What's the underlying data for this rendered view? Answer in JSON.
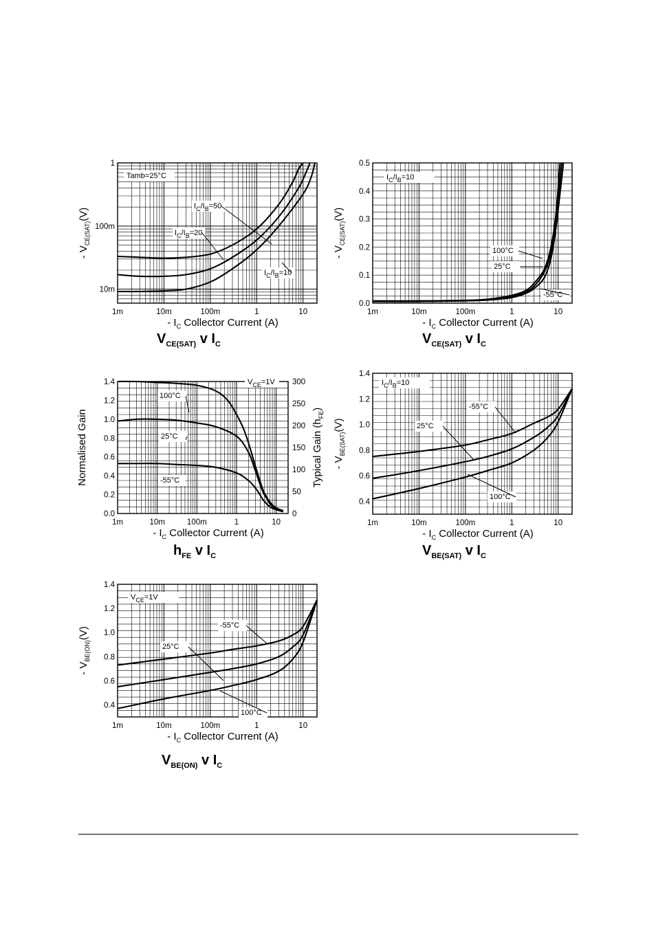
{
  "x_label": {
    "prefix": "- I",
    "sub": "C",
    "text": "Collector Current (A)"
  },
  "x_ticks": [
    "1m",
    "10m",
    "100m",
    "1",
    "10"
  ],
  "charts": [
    {
      "id": "vcesat-ratio",
      "title": {
        "main": "V",
        "main_sub": "CE(SAT)",
        "mid": "v I",
        "end_sub": "C"
      },
      "ylabel": {
        "prefix": "- V",
        "sub": "CE(SAT)",
        "suffix": "(V)"
      },
      "y_ticks": [
        "10m",
        "100m",
        "1"
      ],
      "condition": "Tamb=25°C",
      "annotations": [
        {
          "base": "I",
          "s1": "C",
          "mid": "/I",
          "s2": "B",
          "val": "=50"
        },
        {
          "base": "I",
          "s1": "C",
          "mid": "/I",
          "s2": "B",
          "val": "=20"
        },
        {
          "base": "I",
          "s1": "C",
          "mid": "/I",
          "s2": "B",
          "val": "=10"
        }
      ]
    },
    {
      "id": "vcesat-temp",
      "title": {
        "main": "V",
        "main_sub": "CE(SAT)",
        "mid": "v I",
        "end_sub": "C"
      },
      "ylabel": {
        "prefix": "- V",
        "sub": "CE(SAT)",
        "suffix": "(V)"
      },
      "y_ticks": [
        "0.0",
        "0.1",
        "0.2",
        "0.3",
        "0.4",
        "0.5"
      ],
      "condition": {
        "base": "I",
        "s1": "C",
        "mid": "/I",
        "s2": "B",
        "val": "=10"
      },
      "annotations": [
        "100°C",
        "25°C",
        "-55°C"
      ]
    },
    {
      "id": "hfe",
      "title": {
        "main": "h",
        "main_sub": "FE",
        "mid": "v I",
        "end_sub": "C"
      },
      "ylabel": "Normalised Gain",
      "y2label": {
        "prefix": "Typical Gain (h",
        "sub": "FE",
        "suffix": ")"
      },
      "y_ticks": [
        "0.0",
        "0.2",
        "0.4",
        "0.6",
        "0.8",
        "1.0",
        "1.2",
        "1.4"
      ],
      "y2_ticks": [
        "0",
        "50",
        "100",
        "150",
        "200",
        "250",
        "300"
      ],
      "condition": {
        "base": "V",
        "s1": "CE",
        "val": "=1V"
      },
      "annotations": [
        "100°C",
        "25°C",
        "-55°C"
      ]
    },
    {
      "id": "vbesat",
      "title": {
        "main": "V",
        "main_sub": "BE(SAT)",
        "mid": "v I",
        "end_sub": "C"
      },
      "ylabel": {
        "prefix": "- V",
        "sub": "BE(SAT)",
        "suffix": "(V)"
      },
      "y_ticks": [
        "0.4",
        "0.6",
        "0.8",
        "1.0",
        "1.2",
        "1.4"
      ],
      "condition": {
        "base": "I",
        "s1": "C",
        "mid": "/I",
        "s2": "B",
        "val": "=10"
      },
      "annotations": [
        "-55°C",
        "25°C",
        "100°C"
      ]
    },
    {
      "id": "vbeon",
      "title": {
        "main": "V",
        "main_sub": "BE(ON)",
        "mid": "v I",
        "end_sub": "C"
      },
      "ylabel": {
        "prefix": "- V",
        "sub": "BE(ON)",
        "suffix": "(V)"
      },
      "y_ticks": [
        "0.4",
        "0.6",
        "0.8",
        "1.0",
        "1.2",
        "1.4"
      ],
      "condition": {
        "base": "V",
        "s1": "CE",
        "val": "=1V"
      },
      "annotations": [
        "-55°C",
        "25°C",
        "100°C"
      ]
    }
  ],
  "chart_data": [
    {
      "type": "line",
      "id": "vcesat-ratio",
      "x_scale": "log",
      "y_scale": "log",
      "xlim": [
        0.001,
        20
      ],
      "ylim": [
        0.006,
        1
      ],
      "series": [
        {
          "name": "IC/IB=50",
          "x": [
            0.001,
            0.003,
            0.01,
            0.03,
            0.1,
            0.3,
            1,
            3,
            6,
            8,
            10
          ],
          "y": [
            0.033,
            0.032,
            0.031,
            0.032,
            0.036,
            0.05,
            0.09,
            0.22,
            0.5,
            0.8,
            1
          ]
        },
        {
          "name": "IC/IB=20",
          "x": [
            0.001,
            0.003,
            0.01,
            0.03,
            0.1,
            0.3,
            1,
            3,
            8,
            12,
            14
          ],
          "y": [
            0.017,
            0.016,
            0.016,
            0.017,
            0.021,
            0.032,
            0.06,
            0.14,
            0.4,
            0.75,
            1
          ]
        },
        {
          "name": "IC/IB=10",
          "x": [
            0.001,
            0.003,
            0.01,
            0.03,
            0.1,
            0.3,
            1,
            3,
            10,
            15,
            18
          ],
          "y": [
            0.0092,
            0.0092,
            0.0094,
            0.01,
            0.013,
            0.021,
            0.042,
            0.1,
            0.32,
            0.6,
            1
          ]
        }
      ]
    },
    {
      "type": "line",
      "id": "vcesat-temp",
      "x_scale": "log",
      "xlim": [
        0.001,
        20
      ],
      "ylim": [
        0,
        0.5
      ],
      "series": [
        {
          "name": "100°C",
          "x": [
            0.001,
            0.01,
            0.1,
            0.3,
            1,
            2,
            3,
            5,
            7,
            9,
            11
          ],
          "y": [
            0.008,
            0.008,
            0.01,
            0.014,
            0.028,
            0.045,
            0.07,
            0.12,
            0.2,
            0.32,
            0.5
          ]
        },
        {
          "name": "25°C",
          "x": [
            0.001,
            0.01,
            0.1,
            0.3,
            1,
            2,
            3,
            5,
            7,
            9,
            12
          ],
          "y": [
            0.007,
            0.007,
            0.009,
            0.012,
            0.024,
            0.04,
            0.06,
            0.11,
            0.18,
            0.29,
            0.5
          ]
        },
        {
          "name": "-55°C",
          "x": [
            0.001,
            0.01,
            0.1,
            0.3,
            1,
            2,
            3,
            5,
            7,
            9,
            13
          ],
          "y": [
            0.006,
            0.006,
            0.008,
            0.011,
            0.02,
            0.035,
            0.052,
            0.09,
            0.16,
            0.27,
            0.5
          ]
        }
      ]
    },
    {
      "type": "line",
      "id": "hfe",
      "x_scale": "log",
      "xlim": [
        0.001,
        20
      ],
      "ylim": [
        0,
        1.4
      ],
      "y2lim": [
        0,
        300
      ],
      "series": [
        {
          "name": "100°C",
          "x": [
            0.001,
            0.003,
            0.01,
            0.03,
            0.1,
            0.3,
            0.6,
            1,
            1.5,
            2,
            3,
            4,
            5,
            7,
            10,
            15
          ],
          "y": [
            1.4,
            1.4,
            1.39,
            1.38,
            1.36,
            1.3,
            1.2,
            1.05,
            0.9,
            0.75,
            0.5,
            0.33,
            0.22,
            0.12,
            0.06,
            0.03
          ]
        },
        {
          "name": "25°C",
          "x": [
            0.001,
            0.003,
            0.01,
            0.03,
            0.1,
            0.3,
            1,
            2,
            3,
            4,
            5,
            6,
            7,
            10,
            15
          ],
          "y": [
            0.98,
            1.0,
            1.0,
            0.99,
            0.96,
            0.92,
            0.82,
            0.65,
            0.45,
            0.3,
            0.2,
            0.15,
            0.1,
            0.05,
            0.02
          ]
        },
        {
          "name": "-55°C",
          "x": [
            0.001,
            0.003,
            0.01,
            0.03,
            0.1,
            0.3,
            1,
            2,
            3,
            4,
            5,
            7,
            10,
            15
          ],
          "y": [
            0.53,
            0.53,
            0.53,
            0.52,
            0.51,
            0.49,
            0.43,
            0.35,
            0.27,
            0.19,
            0.13,
            0.07,
            0.04,
            0.02
          ]
        }
      ]
    },
    {
      "type": "line",
      "id": "vbesat",
      "x_scale": "log",
      "xlim": [
        0.001,
        20
      ],
      "ylim": [
        0.3,
        1.4
      ],
      "series": [
        {
          "name": "-55°C",
          "x": [
            0.001,
            0.01,
            0.1,
            0.3,
            1,
            3,
            6,
            10,
            20
          ],
          "y": [
            0.75,
            0.79,
            0.84,
            0.88,
            0.93,
            1.01,
            1.06,
            1.12,
            1.28
          ]
        },
        {
          "name": "25°C",
          "x": [
            0.001,
            0.01,
            0.1,
            0.3,
            1,
            3,
            6,
            10,
            20
          ],
          "y": [
            0.58,
            0.64,
            0.71,
            0.75,
            0.81,
            0.9,
            0.98,
            1.07,
            1.28
          ]
        },
        {
          "name": "100°C",
          "x": [
            0.001,
            0.01,
            0.1,
            0.3,
            1,
            3,
            6,
            10,
            20
          ],
          "y": [
            0.42,
            0.5,
            0.59,
            0.64,
            0.7,
            0.8,
            0.9,
            1.02,
            1.28
          ]
        }
      ]
    },
    {
      "type": "line",
      "id": "vbeon",
      "x_scale": "log",
      "xlim": [
        0.001,
        20
      ],
      "ylim": [
        0.3,
        1.4
      ],
      "series": [
        {
          "name": "-55°C",
          "x": [
            0.001,
            0.01,
            0.1,
            0.3,
            1,
            3,
            6,
            10,
            20
          ],
          "y": [
            0.73,
            0.78,
            0.83,
            0.86,
            0.89,
            0.93,
            0.98,
            1.05,
            1.27
          ]
        },
        {
          "name": "25°C",
          "x": [
            0.001,
            0.01,
            0.1,
            0.3,
            1,
            3,
            6,
            10,
            20
          ],
          "y": [
            0.55,
            0.61,
            0.67,
            0.7,
            0.74,
            0.8,
            0.88,
            0.98,
            1.27
          ]
        },
        {
          "name": "100°C",
          "x": [
            0.001,
            0.01,
            0.1,
            0.3,
            1,
            3,
            6,
            10,
            20
          ],
          "y": [
            0.37,
            0.45,
            0.52,
            0.56,
            0.61,
            0.68,
            0.78,
            0.92,
            1.27
          ]
        }
      ]
    }
  ]
}
